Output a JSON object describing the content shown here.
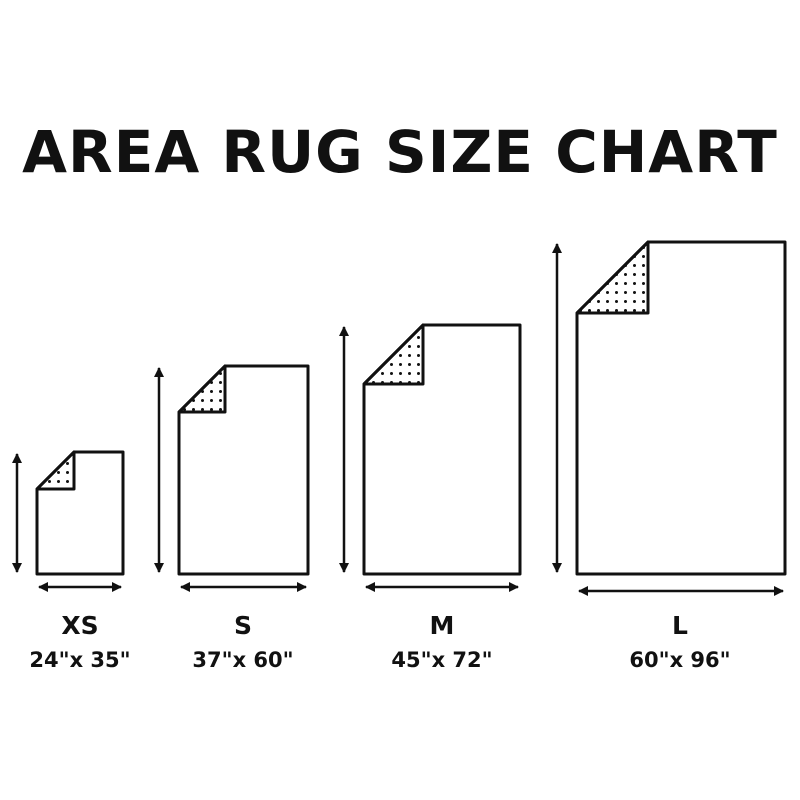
{
  "title": "AREA RUG SIZE CHART",
  "colors": {
    "stroke": "#111111",
    "background": "#ffffff"
  },
  "rugs": [
    {
      "size": "XS",
      "dimensions": "24\"x 35\"",
      "width_in": 24,
      "length_in": 35
    },
    {
      "size": "S",
      "dimensions": "37\"x 60\"",
      "width_in": 37,
      "length_in": 60
    },
    {
      "size": "M",
      "dimensions": "45\"x 72\"",
      "width_in": 45,
      "length_in": 72
    },
    {
      "size": "L",
      "dimensions": "60\"x 96\"",
      "width_in": 60,
      "length_in": 96
    }
  ]
}
